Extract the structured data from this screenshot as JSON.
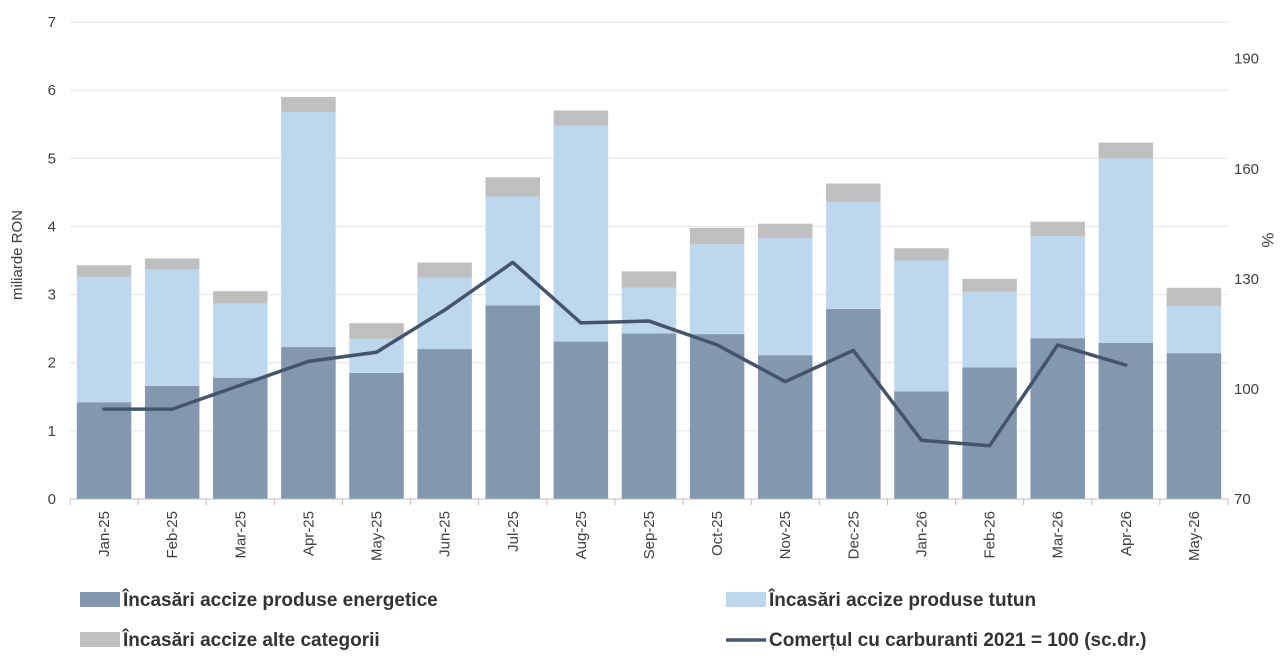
{
  "chart_data": {
    "type": "bar",
    "stacked": true,
    "categories": [
      "Jan-25",
      "Feb-25",
      "Mar-25",
      "Apr-25",
      "May-25",
      "Jun-25",
      "Jul-25",
      "Aug-25",
      "Sep-25",
      "Oct-25",
      "Nov-25",
      "Dec-25",
      "Jan-26",
      "Feb-26",
      "Mar-26",
      "Apr-26",
      "May-26"
    ],
    "ylabel": "miliarde RON",
    "y2label": "%",
    "ylim": [
      0,
      7
    ],
    "y2lim": [
      70,
      200
    ],
    "yticks": [
      "0",
      "1",
      "2",
      "3",
      "4",
      "5",
      "6",
      "7"
    ],
    "y2ticks": [
      "70",
      "100",
      "130",
      "160",
      "190"
    ],
    "grid": true,
    "legend_position": "bottom",
    "series": [
      {
        "name": "Încasări accize produse energetice",
        "kind": "bar",
        "color": "#8497B0",
        "values": [
          1.42,
          1.66,
          1.78,
          2.23,
          1.85,
          2.2,
          2.84,
          2.31,
          2.43,
          2.42,
          2.11,
          2.79,
          1.58,
          1.93,
          2.36,
          2.29,
          2.14
        ]
      },
      {
        "name": "Încasări accize produse tutun",
        "kind": "bar",
        "color": "#BDD7EE",
        "values": [
          1.84,
          1.71,
          1.09,
          3.45,
          0.5,
          1.05,
          1.6,
          3.17,
          0.67,
          1.32,
          1.72,
          1.57,
          1.92,
          1.11,
          1.5,
          2.71,
          0.69
        ]
      },
      {
        "name": "Încasări accize alte categorii",
        "kind": "bar",
        "color": "#BFBFBF",
        "values": [
          0.17,
          0.16,
          0.18,
          0.22,
          0.23,
          0.22,
          0.28,
          0.22,
          0.24,
          0.24,
          0.21,
          0.27,
          0.18,
          0.19,
          0.21,
          0.23,
          0.27
        ]
      },
      {
        "name": "Comerțul cu carburanti 2021 = 100 (sc.dr.)",
        "kind": "line",
        "axis": "right",
        "color": "#44546A",
        "values": [
          94.5,
          94.5,
          101,
          107.5,
          110,
          121.5,
          134.5,
          118,
          118.5,
          112,
          102,
          110.5,
          86,
          84.5,
          112,
          106.5,
          null
        ]
      }
    ]
  }
}
